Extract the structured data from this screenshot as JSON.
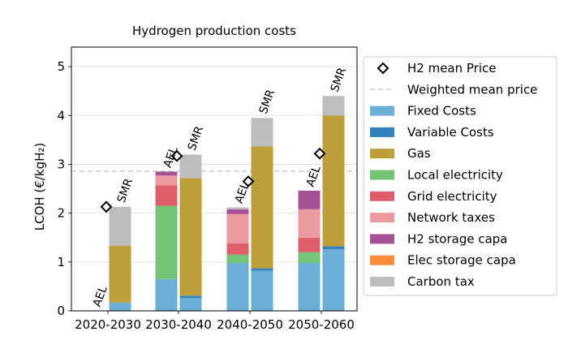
{
  "chart_data": {
    "type": "bar",
    "title": "Hydrogen production costs",
    "xlabel": "",
    "ylabel": "LCOH (€/kgH₂)",
    "ylim": [
      0,
      5.4
    ],
    "yticks": [
      0,
      1,
      2,
      3,
      4,
      5
    ],
    "grid": "horizontal",
    "legend_placement": "right",
    "categories": [
      "2020-2030",
      "2030-2040",
      "2040-2050",
      "2050-2060"
    ],
    "technologies": [
      "AEL",
      "SMR"
    ],
    "components": [
      {
        "name": "Fixed Costs",
        "color": "#6baed6"
      },
      {
        "name": "Variable Costs",
        "color": "#3182bd"
      },
      {
        "name": "Gas",
        "color": "#bd9e39"
      },
      {
        "name": "Local electricity",
        "color": "#74c476"
      },
      {
        "name": "Grid electricity",
        "color": "#de5f6a"
      },
      {
        "name": "Network taxes",
        "color": "#ea9aa0"
      },
      {
        "name": "H2 storage capa",
        "color": "#a65096"
      },
      {
        "name": "Elec storage capa",
        "color": "#fd8d3c"
      },
      {
        "name": "Carbon tax",
        "color": "#bdbdbd"
      }
    ],
    "stacks": [
      {
        "category": "2020-2030",
        "tech": "AEL",
        "values": [
          0,
          0,
          0,
          0,
          0,
          0,
          0,
          0,
          0
        ]
      },
      {
        "category": "2020-2030",
        "tech": "SMR",
        "values": [
          0.17,
          0.0,
          1.16,
          0,
          0,
          0,
          0,
          0,
          0.8
        ]
      },
      {
        "category": "2030-2040",
        "tech": "AEL",
        "values": [
          0.65,
          0.0,
          0,
          1.5,
          0.42,
          0.2,
          0.08,
          0,
          0.0
        ]
      },
      {
        "category": "2030-2040",
        "tech": "SMR",
        "values": [
          0.26,
          0.05,
          2.41,
          0,
          0,
          0,
          0,
          0,
          0.48
        ]
      },
      {
        "category": "2040-2050",
        "tech": "AEL",
        "values": [
          0.98,
          0.0,
          0,
          0.17,
          0.23,
          0.6,
          0.1,
          0,
          0.04
        ]
      },
      {
        "category": "2040-2050",
        "tech": "SMR",
        "values": [
          0.82,
          0.05,
          2.5,
          0,
          0,
          0,
          0,
          0,
          0.58
        ]
      },
      {
        "category": "2050-2060",
        "tech": "AEL",
        "values": [
          0.98,
          0.0,
          0,
          0.22,
          0.3,
          0.58,
          0.38,
          0,
          0.0
        ]
      },
      {
        "category": "2050-2060",
        "tech": "SMR",
        "values": [
          1.26,
          0.06,
          2.68,
          0,
          0,
          0,
          0,
          0,
          0.4
        ]
      }
    ],
    "mean_price": {
      "name": "H2 mean Price",
      "values": [
        2.13,
        3.17,
        2.65,
        3.22
      ]
    },
    "weighted_mean": {
      "name": "Weighted mean price",
      "value": 2.86
    }
  }
}
